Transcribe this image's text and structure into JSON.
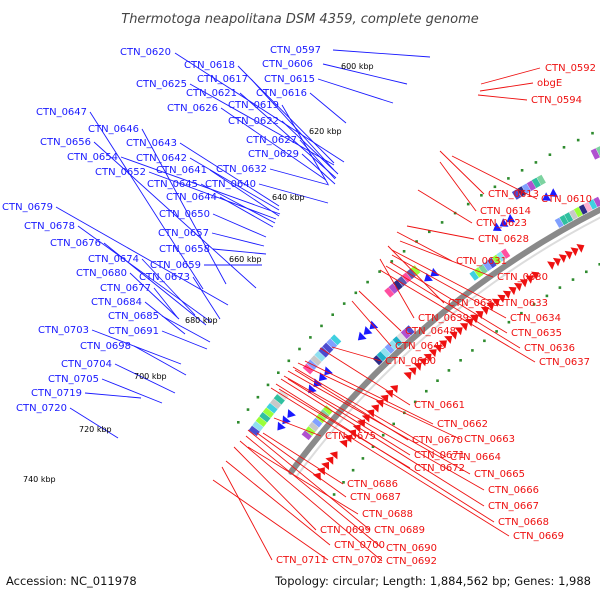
{
  "title": "Thermotoga neapolitana DSM 4359, complete genome",
  "footer": {
    "accession": "Accession: NC_011978",
    "summary": "Topology: circular; Length: 1,884,562 bp; Genes: 1,988"
  },
  "scale_labels": [
    "600 kbp",
    "620 kbp",
    "640 kbp",
    "660 kbp",
    "680 kbp",
    "700 kbp",
    "720 kbp",
    "740 kbp"
  ],
  "forward_labels": [
    "CTN_0597",
    "CTN_0620",
    "CTN_0606",
    "CTN_0618",
    "CTN_0625",
    "CTN_0617",
    "CTN_0615",
    "CTN_0621",
    "CTN_0616",
    "CTN_0626",
    "CTN_0619",
    "CTN_0647",
    "CTN_0622",
    "CTN_0646",
    "CTN_0627",
    "CTN_0656",
    "CTN_0643",
    "CTN_0642",
    "CTN_0629",
    "CTN_0654",
    "CTN_0641",
    "CTN_0632",
    "CTN_0652",
    "CTN_0645",
    "CTN_0640",
    "CTN_0644",
    "CTN_0679",
    "CTN_0650",
    "CTN_0678",
    "CTN_0657",
    "CTN_0676",
    "CTN_0658",
    "CTN_0674",
    "CTN_0659",
    "CTN_0680",
    "CTN_0673",
    "CTN_0677",
    "CTN_0684",
    "CTN_0685",
    "CTN_0703",
    "CTN_0691",
    "CTN_0698",
    "CTN_0704",
    "CTN_0705",
    "CTN_0719",
    "CTN_0720"
  ],
  "reverse_labels": [
    "CTN_0592",
    "obgE",
    "CTN_0594",
    "CTN_0613",
    "CTN_0610",
    "CTN_0614",
    "CTN_0623",
    "CTN_0628",
    "CTN_0631",
    "CTN_0630",
    "CTN_0638",
    "CTN_0633",
    "CTN_0639",
    "CTN_0634",
    "CTN_0648",
    "CTN_0635",
    "CTN_0636",
    "CTN_0649",
    "CTN_0637",
    "CTN_0660",
    "CTN_0661",
    "CTN_0662",
    "CTN_0675",
    "CTN_0670",
    "CTN_0663",
    "CTN_0671",
    "CTN_0664",
    "CTN_0672",
    "CTN_0665",
    "CTN_0686",
    "CTN_0666",
    "CTN_0687",
    "CTN_0667",
    "CTN_0688",
    "CTN_0668",
    "CTN_0699",
    "CTN_0689",
    "CTN_0669",
    "CTN_0700",
    "CTN_0690",
    "CTN_0711",
    "CTN_0702",
    "CTN_0692"
  ],
  "colors": {
    "forward": "#1a1aff",
    "reverse": "#ee1111",
    "backbone": "#777777",
    "gc_dots": "#2e8b2e"
  }
}
